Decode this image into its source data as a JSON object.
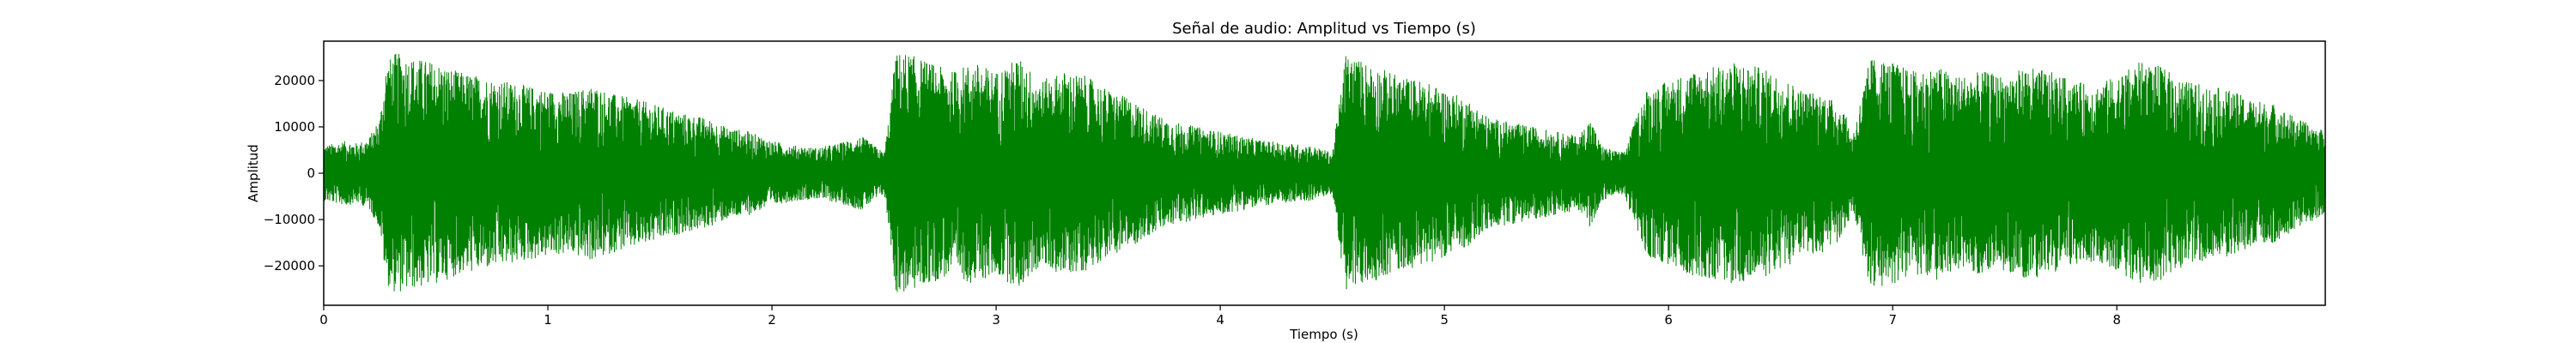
{
  "chart_data": {
    "type": "line",
    "title": "Señal de audio: Amplitud vs Tiempo (s)",
    "xlabel": "Tiempo (s)",
    "ylabel": "Amplitud",
    "xlim": [
      0,
      8.93
    ],
    "ylim": [
      -28500,
      28500
    ],
    "xticks": [
      0,
      1,
      2,
      3,
      4,
      5,
      6,
      7,
      8
    ],
    "yticks": [
      -20000,
      -10000,
      0,
      10000,
      20000
    ],
    "grid": false,
    "legend": "none",
    "series": [
      {
        "color": "#008000",
        "envelope": {
          "t": [
            0.0,
            0.05,
            0.1,
            0.15,
            0.2,
            0.25,
            0.28,
            0.32,
            0.4,
            0.5,
            0.6,
            0.7,
            0.8,
            0.9,
            1.0,
            1.1,
            1.2,
            1.3,
            1.4,
            1.5,
            1.6,
            1.7,
            1.8,
            1.9,
            2.0,
            2.1,
            2.2,
            2.3,
            2.4,
            2.5,
            2.53,
            2.55,
            2.6,
            2.7,
            2.8,
            2.9,
            3.0,
            3.1,
            3.2,
            3.3,
            3.4,
            3.5,
            3.6,
            3.7,
            3.8,
            3.9,
            4.0,
            4.1,
            4.2,
            4.3,
            4.4,
            4.5,
            4.53,
            4.56,
            4.6,
            4.7,
            4.8,
            4.9,
            5.0,
            5.1,
            5.2,
            5.3,
            5.4,
            5.5,
            5.6,
            5.65,
            5.7,
            5.75,
            5.8,
            5.9,
            6.0,
            6.1,
            6.2,
            6.3,
            6.4,
            6.5,
            6.6,
            6.7,
            6.78,
            6.82,
            6.9,
            7.0,
            7.1,
            7.2,
            7.3,
            7.4,
            7.5,
            7.6,
            7.7,
            7.8,
            7.9,
            8.0,
            8.1,
            8.2,
            8.3,
            8.4,
            8.5,
            8.6,
            8.7,
            8.8,
            8.93
          ],
          "amplitude": [
            6000,
            6500,
            7000,
            6500,
            7500,
            12000,
            24000,
            26000,
            25000,
            24000,
            22000,
            21000,
            20000,
            19000,
            18000,
            17500,
            19000,
            17000,
            16000,
            14500,
            13000,
            12000,
            10000,
            9000,
            7000,
            6000,
            5500,
            6500,
            8000,
            4500,
            15000,
            26000,
            26000,
            24000,
            22000,
            24000,
            22000,
            25000,
            20000,
            22000,
            21000,
            18000,
            16000,
            13000,
            11000,
            10000,
            9000,
            8000,
            7000,
            6500,
            6000,
            4500,
            15000,
            26000,
            25000,
            23000,
            21000,
            20000,
            18000,
            16000,
            12000,
            11000,
            10000,
            9000,
            8000,
            12000,
            6000,
            5000,
            4500,
            18000,
            20000,
            22000,
            23000,
            24000,
            23000,
            21000,
            18000,
            17000,
            14000,
            8000,
            25000,
            24000,
            22000,
            23000,
            21000,
            22000,
            21000,
            23000,
            22000,
            20000,
            19000,
            21000,
            24000,
            23000,
            20000,
            19000,
            18000,
            16000,
            15000,
            12000,
            9000
          ]
        }
      }
    ]
  }
}
